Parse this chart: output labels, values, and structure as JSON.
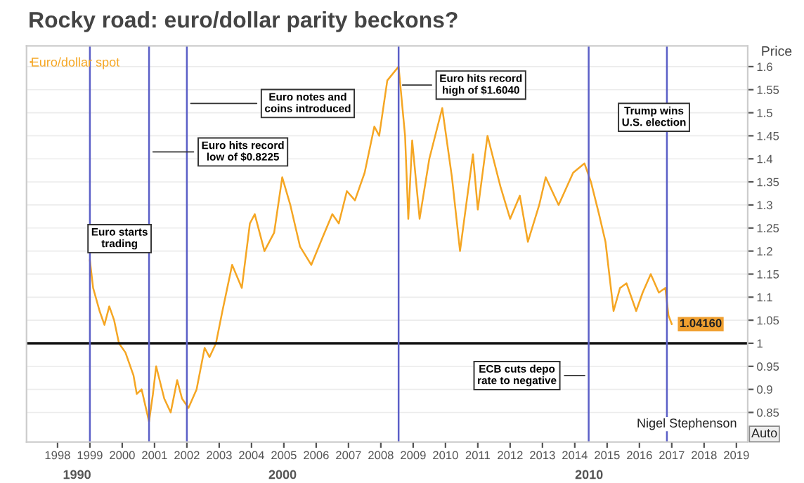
{
  "chart_data": {
    "type": "line",
    "title": "Rocky road: euro/dollar parity beckons?",
    "ylabel": "Price",
    "series": [
      {
        "name": "Euro/dollar spot",
        "color": "#f5a623",
        "x": [
          1999.0,
          1999.1,
          1999.3,
          1999.45,
          1999.6,
          1999.75,
          1999.9,
          2000.1,
          2000.35,
          2000.45,
          2000.6,
          2000.83,
          2000.95,
          2001.05,
          2001.3,
          2001.5,
          2001.7,
          2001.85,
          2002.05,
          2002.3,
          2002.55,
          2002.7,
          2002.9,
          2003.1,
          2003.4,
          2003.7,
          2003.95,
          2004.1,
          2004.4,
          2004.7,
          2004.95,
          2005.2,
          2005.5,
          2005.85,
          2006.2,
          2006.5,
          2006.7,
          2006.95,
          2007.2,
          2007.5,
          2007.8,
          2007.95,
          2008.2,
          2008.55,
          2008.75,
          2008.85,
          2008.97,
          2009.2,
          2009.5,
          2009.9,
          2010.2,
          2010.45,
          2010.85,
          2011.0,
          2011.3,
          2011.7,
          2012.0,
          2012.3,
          2012.55,
          2012.9,
          2013.1,
          2013.5,
          2013.95,
          2014.3,
          2014.5,
          2014.75,
          2014.95,
          2015.2,
          2015.4,
          2015.6,
          2015.9,
          2016.1,
          2016.35,
          2016.6,
          2016.8,
          2016.9,
          2017.0
        ],
        "values": [
          1.18,
          1.12,
          1.07,
          1.04,
          1.08,
          1.05,
          1.0,
          0.98,
          0.93,
          0.89,
          0.9,
          0.83,
          0.89,
          0.95,
          0.88,
          0.85,
          0.92,
          0.88,
          0.86,
          0.9,
          0.99,
          0.97,
          1.0,
          1.07,
          1.17,
          1.12,
          1.26,
          1.28,
          1.2,
          1.24,
          1.36,
          1.3,
          1.21,
          1.17,
          1.23,
          1.28,
          1.26,
          1.33,
          1.31,
          1.37,
          1.47,
          1.45,
          1.57,
          1.6,
          1.45,
          1.27,
          1.44,
          1.27,
          1.4,
          1.51,
          1.36,
          1.2,
          1.41,
          1.29,
          1.45,
          1.34,
          1.27,
          1.32,
          1.22,
          1.3,
          1.36,
          1.3,
          1.37,
          1.39,
          1.35,
          1.28,
          1.22,
          1.07,
          1.12,
          1.13,
          1.07,
          1.11,
          1.15,
          1.11,
          1.12,
          1.06,
          1.0416
        ]
      }
    ],
    "xlim": [
      1997.04,
      2019.35
    ],
    "ylim": [
      0.786,
      1.645
    ],
    "xticks": [
      1998,
      1999,
      2000,
      2001,
      2002,
      2003,
      2004,
      2005,
      2006,
      2007,
      2008,
      2009,
      2010,
      2011,
      2012,
      2013,
      2014,
      2015,
      2016,
      2017,
      2018,
      2019
    ],
    "yticks": [
      0.85,
      0.9,
      0.95,
      1,
      1.05,
      1.1,
      1.15,
      1.2,
      1.25,
      1.3,
      1.35,
      1.4,
      1.45,
      1.5,
      1.55,
      1.6
    ],
    "ref_lines": [
      {
        "axis": "x",
        "value": 1999.0,
        "label": "Euro starts\ntrading",
        "color": "#5b5fc7"
      },
      {
        "axis": "x",
        "value": 2000.83,
        "label": "Euro hits record\nlow of $0.8225",
        "color": "#5b5fc7"
      },
      {
        "axis": "x",
        "value": 2002.0,
        "label": "Euro notes and\ncoins introduced",
        "color": "#5b5fc7"
      },
      {
        "axis": "x",
        "value": 2008.55,
        "label": "Euro hits record\nhigh of $1.6040",
        "color": "#5b5fc7"
      },
      {
        "axis": "x",
        "value": 2014.43,
        "label": "ECB cuts depo\nrate to negative",
        "color": "#5b5fc7"
      },
      {
        "axis": "x",
        "value": 2016.85,
        "label": "Trump wins\nU.S. election",
        "color": "#5b5fc7"
      },
      {
        "axis": "y",
        "value": 1.0,
        "color": "#111111"
      }
    ],
    "annotations": [
      {
        "text": "1.04160",
        "x": 2017.0,
        "y": 1.0416
      },
      "Nigel Stephenson",
      "Auto",
      "1990",
      "2000",
      "2010"
    ],
    "grid": "y",
    "legend": "top left"
  }
}
